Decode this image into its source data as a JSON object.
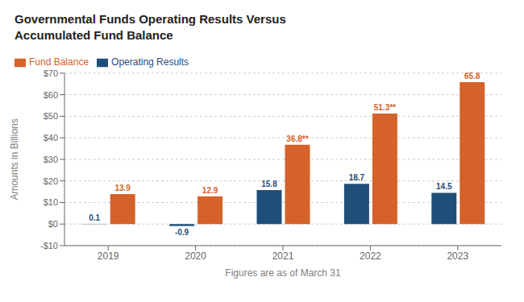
{
  "chart_data": {
    "type": "bar",
    "title": "Governmental Funds Operating Results Versus\nAccumulated Fund Balance",
    "categories": [
      "2019",
      "2020",
      "2021",
      "2022",
      "2023"
    ],
    "series": [
      {
        "name": "Operating Results",
        "color": "#1f4e79",
        "values": [
          0.1,
          -0.9,
          15.8,
          18.7,
          14.5
        ]
      },
      {
        "name": "Fund Balance",
        "color": "#d4622a",
        "values": [
          13.9,
          12.9,
          36.8,
          51.3,
          65.8
        ],
        "value_labels": [
          "13.9",
          "12.9",
          "36.8**",
          "51.3**",
          "65.8"
        ]
      }
    ],
    "x_label": "Figures are as of March 31",
    "y_label": "Amounts in Billions",
    "ylim": [
      -10,
      70
    ],
    "yticks": [
      {
        "value": -10,
        "label": "-$10"
      },
      {
        "value": 0,
        "label": "$0"
      },
      {
        "value": 10,
        "label": "$10"
      },
      {
        "value": 20,
        "label": "$20"
      },
      {
        "value": 30,
        "label": "$30"
      },
      {
        "value": 40,
        "label": "$40"
      },
      {
        "value": 50,
        "label": "$50"
      },
      {
        "value": 60,
        "label": "$60"
      },
      {
        "value": 70,
        "label": "$70"
      }
    ],
    "grid": true,
    "legend": "top",
    "data_labels": true
  }
}
